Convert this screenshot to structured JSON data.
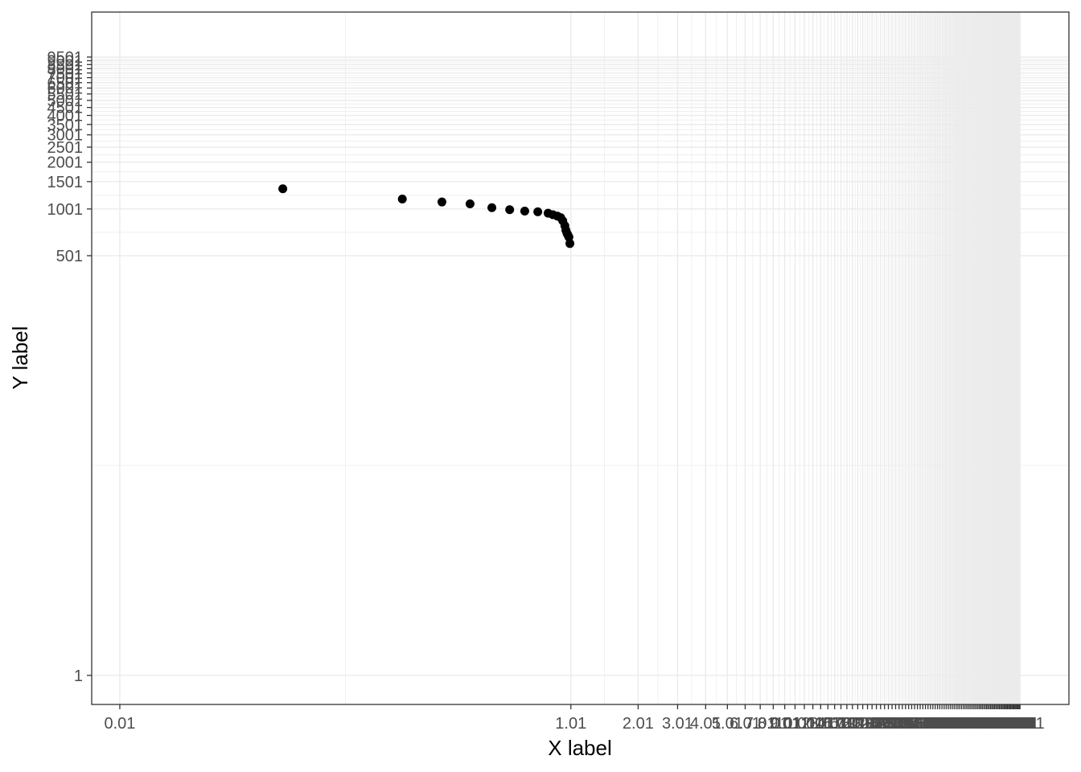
{
  "chart_data": {
    "type": "scatter",
    "title": "",
    "xlabel": "X label",
    "ylabel": "Y label",
    "x_scale": "log10",
    "y_scale": "log10",
    "xlim": [
      0.0075,
      165
    ],
    "ylim": [
      0.65,
      18500
    ],
    "grid": true,
    "legend": "none",
    "x_ticks": [
      "0.01",
      "1.01",
      "2.01",
      "3.01",
      "4.01",
      "5.01",
      "6.01",
      "7.01",
      "8.01",
      "9.01",
      "10.01",
      "11.01",
      "12.01",
      "13.01",
      "14.01",
      "15.01",
      "16.01",
      "17.01",
      "18.01",
      "19.01",
      "20.01",
      "21.01",
      "22.01",
      "23.01",
      "24.01",
      "25.01",
      "26.01",
      "27.01",
      "28.01",
      "29.01",
      "30.01",
      "31.01",
      "32.01",
      "33.01",
      "34.01",
      "35.01",
      "36.01",
      "37.01",
      "38.01",
      "39.01",
      "40.01",
      "41.01",
      "42.01",
      "43.01",
      "44.01",
      "45.01",
      "46.01",
      "47.01",
      "48.01",
      "49.01",
      "50.01",
      "51.01",
      "52.01",
      "53.01",
      "54.01",
      "55.01",
      "56.01",
      "57.01",
      "58.01",
      "59.01",
      "60.01",
      "61.01",
      "62.01",
      "63.01",
      "64.01",
      "65.01",
      "66.01",
      "67.01",
      "68.01",
      "69.01",
      "70.01",
      "71.01",
      "72.01",
      "73.01",
      "74.01",
      "75.01",
      "76.01",
      "77.01",
      "78.01",
      "79.01",
      "80.01",
      "81.01",
      "82.01",
      "83.01",
      "84.01",
      "85.01",
      "86.01",
      "87.01",
      "88.01",
      "89.01",
      "90.01",
      "91.01",
      "92.01",
      "93.01",
      "94.01",
      "95.01",
      "96.01",
      "97.01",
      "98.01",
      "99.01",
      "100.01"
    ],
    "y_ticks": [
      "1",
      "501",
      "1001",
      "1501",
      "2001",
      "2501",
      "3001",
      "3501",
      "4001",
      "4501",
      "5001",
      "5501",
      "6001",
      "6501",
      "7001",
      "7501",
      "8001",
      "8501",
      "9001",
      "9501"
    ],
    "x": [
      0.053,
      0.18,
      0.27,
      0.36,
      0.45,
      0.54,
      0.63,
      0.72,
      0.8,
      0.84,
      0.88,
      0.91,
      0.93,
      0.95,
      0.96,
      0.97,
      0.98,
      0.99,
      1.0
    ],
    "y": [
      1350,
      1160,
      1110,
      1080,
      1020,
      990,
      970,
      960,
      940,
      920,
      900,
      880,
      840,
      780,
      730,
      700,
      680,
      660,
      600
    ],
    "marker_color": "#000000"
  }
}
